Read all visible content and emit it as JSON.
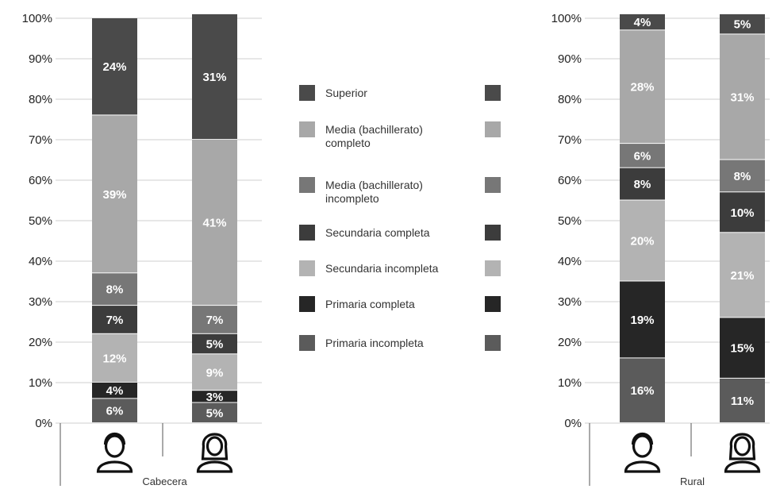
{
  "chart_data": [
    {
      "type": "bar",
      "stacked": true,
      "title": "",
      "group_label": "Cabecera",
      "categories": [
        "male-icon",
        "female-icon"
      ],
      "ylim": [
        0,
        100
      ],
      "yticks": [
        "0%",
        "10%",
        "20%",
        "30%",
        "40%",
        "50%",
        "60%",
        "70%",
        "80%",
        "90%",
        "100%"
      ],
      "grid": true,
      "series": [
        {
          "name": "Primaria incompleta",
          "values": [
            6,
            5
          ],
          "labels": [
            "6%",
            "5%"
          ]
        },
        {
          "name": "Primaria completa",
          "values": [
            4,
            3
          ],
          "labels": [
            "4%",
            "3%"
          ]
        },
        {
          "name": "Secundaria incompleta",
          "values": [
            12,
            9
          ],
          "labels": [
            "12%",
            "9%"
          ]
        },
        {
          "name": "Secundaria completa",
          "values": [
            7,
            5
          ],
          "labels": [
            "7%",
            "5%"
          ]
        },
        {
          "name": "Media (bachillerato) incompleto",
          "values": [
            8,
            7
          ],
          "labels": [
            "8%",
            "7%"
          ]
        },
        {
          "name": "Media (bachillerato) completo",
          "values": [
            39,
            41
          ],
          "labels": [
            "39%",
            "41%"
          ]
        },
        {
          "name": "Superior",
          "values": [
            24,
            31
          ],
          "labels": [
            "24%",
            "31%"
          ]
        }
      ]
    },
    {
      "type": "bar",
      "stacked": true,
      "title": "",
      "group_label": "Rural",
      "categories": [
        "male-icon",
        "female-icon"
      ],
      "ylim": [
        0,
        100
      ],
      "yticks": [
        "0%",
        "10%",
        "20%",
        "30%",
        "40%",
        "50%",
        "60%",
        "70%",
        "80%",
        "90%",
        "100%"
      ],
      "grid": true,
      "series": [
        {
          "name": "Primaria incompleta",
          "values": [
            16,
            11
          ],
          "labels": [
            "16%",
            "11%"
          ]
        },
        {
          "name": "Primaria completa",
          "values": [
            19,
            15
          ],
          "labels": [
            "19%",
            "15%"
          ]
        },
        {
          "name": "Secundaria incompleta",
          "values": [
            20,
            21
          ],
          "labels": [
            "20%",
            "21%"
          ]
        },
        {
          "name": "Secundaria completa",
          "values": [
            8,
            10
          ],
          "labels": [
            "8%",
            "10%"
          ]
        },
        {
          "name": "Media (bachillerato) incompleto",
          "values": [
            6,
            8
          ],
          "labels": [
            "6%",
            "8%"
          ]
        },
        {
          "name": "Media (bachillerato) completo",
          "values": [
            28,
            31
          ],
          "labels": [
            "28%",
            "31%"
          ]
        },
        {
          "name": "Superior",
          "values": [
            4,
            5
          ],
          "labels": [
            "4%",
            "5%"
          ]
        }
      ]
    }
  ],
  "legend": {
    "placement": "center",
    "items": [
      {
        "key": "superior",
        "lines": [
          "Superior"
        ]
      },
      {
        "key": "media_completo",
        "lines": [
          "Media (bachillerato)",
          "completo"
        ]
      },
      {
        "key": "media_incompleto",
        "lines": [
          "Media (bachillerato)",
          "incompleto"
        ]
      },
      {
        "key": "secundaria_completa",
        "lines": [
          "Secundaria completa"
        ]
      },
      {
        "key": "secundaria_incompleta",
        "lines": [
          "Secundaria incompleta"
        ]
      },
      {
        "key": "primaria_completa",
        "lines": [
          "Primaria completa"
        ]
      },
      {
        "key": "primaria_incompleta",
        "lines": [
          "Primaria incompleta"
        ]
      }
    ]
  },
  "colors": {
    "Primaria incompleta": "#5b5b5b",
    "Primaria completa": "#262626",
    "Secundaria incompleta": "#b3b3b3",
    "Secundaria completa": "#3c3c3c",
    "Media (bachillerato) incompleto": "#777777",
    "Media (bachillerato) completo": "#a8a8a8",
    "Superior": "#4a4a4a",
    "grid": "#cfcfcf",
    "axis": "#555555"
  }
}
